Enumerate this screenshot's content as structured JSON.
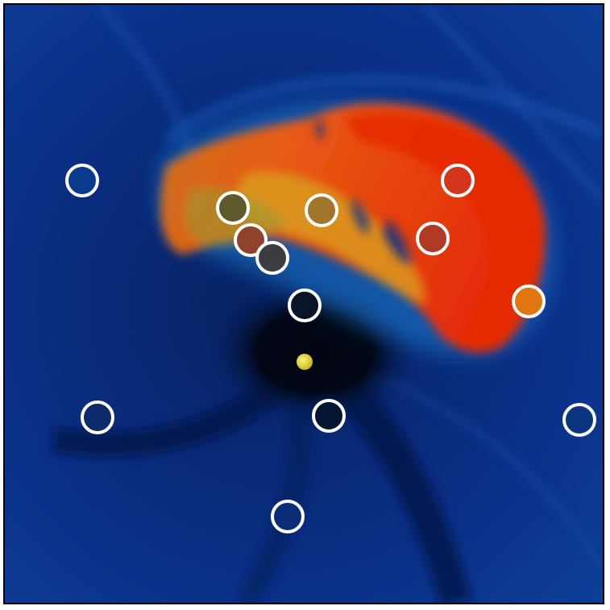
{
  "image": {
    "background_color": "#0b2f86",
    "frame_color": "#000000",
    "void_color": "#020716",
    "star_color": "#d8cf2a",
    "plume_colors": [
      "#e52a06",
      "#f2481a",
      "#e8a21a",
      "#9a9a33"
    ]
  },
  "markers": {
    "ring_color": "#ffffff",
    "items": [
      {
        "fill": "#0a3a8e"
      },
      {
        "fill": "#5f5a2c"
      },
      {
        "fill": "#a1752a"
      },
      {
        "fill": "#d3361a"
      },
      {
        "fill": "#8f432c"
      },
      {
        "fill": "#3b3d40"
      },
      {
        "fill": "#b13a24"
      },
      {
        "fill": "#0b1426"
      },
      {
        "fill": "#e17610"
      },
      {
        "fill": "#0d2a6d"
      },
      {
        "fill": "#051633"
      },
      {
        "fill": "#0c357f"
      },
      {
        "fill": "#0b2d77"
      }
    ]
  }
}
